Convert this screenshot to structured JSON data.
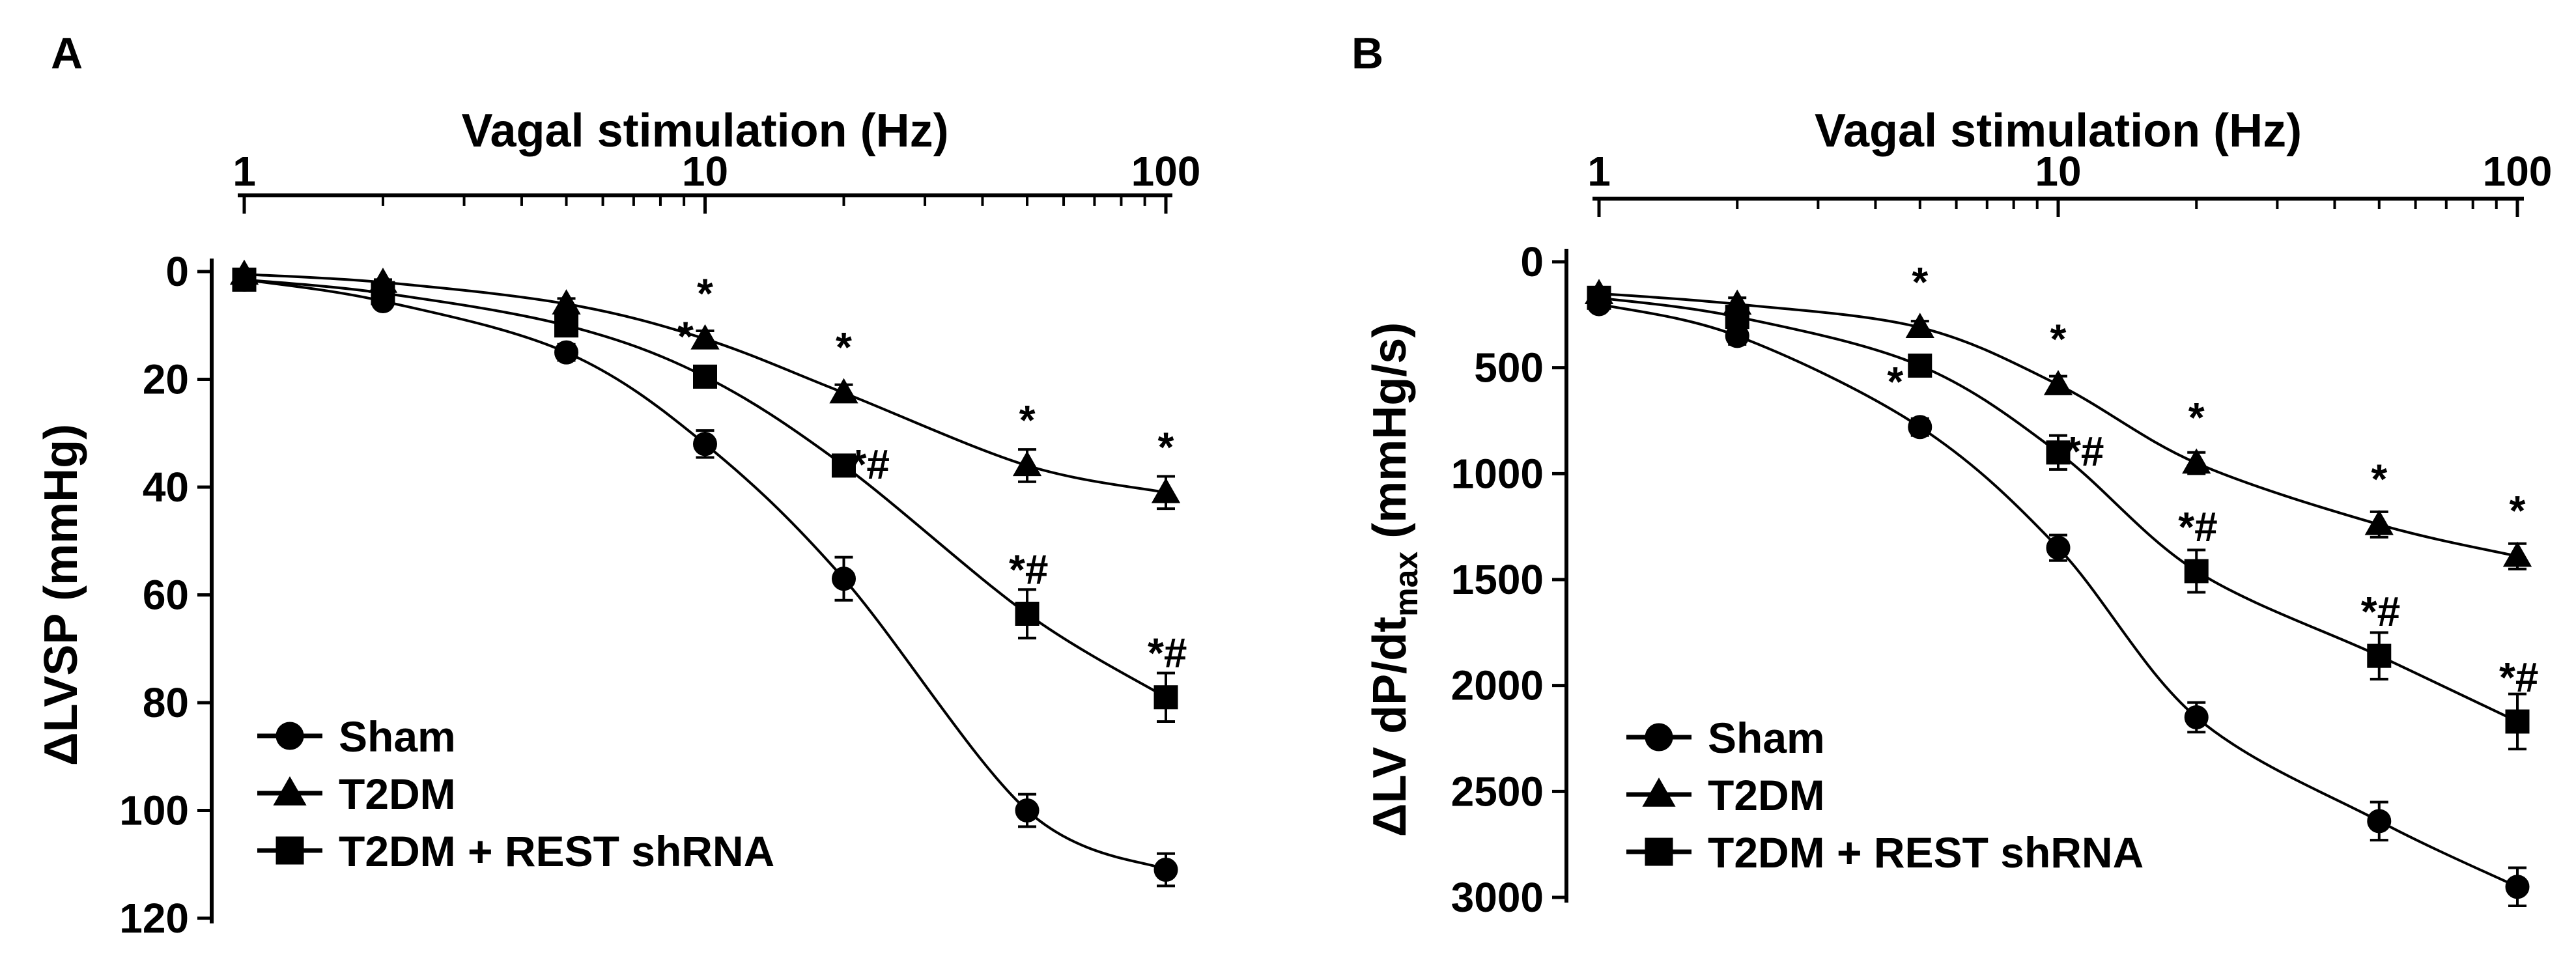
{
  "chart_data": [
    {
      "type": "line",
      "panel_label": "A",
      "title": "",
      "xlabel": "Vagal stimulation (Hz)",
      "ylabel": "ΔLVSP (mmHg)",
      "xscale": "log",
      "xlim": [
        1,
        100
      ],
      "ylim": [
        0,
        120
      ],
      "y_inverted": true,
      "x_tick_labels": [
        "1",
        "10",
        "100"
      ],
      "x_tick_values": [
        1,
        10,
        100
      ],
      "y_tick_values": [
        0,
        20,
        40,
        60,
        80,
        100,
        120
      ],
      "y_tick_labels": [
        "0",
        "20",
        "40",
        "60",
        "80",
        "100",
        "120"
      ],
      "x": [
        1,
        2,
        5,
        10,
        20,
        50,
        100
      ],
      "legend_position": "bottom-left",
      "series": [
        {
          "name": "Sham",
          "marker": "circle",
          "values": [
            1.5,
            5.5,
            15,
            32,
            57,
            100,
            111
          ],
          "errors": [
            1,
            1,
            1.5,
            2.5,
            4,
            3,
            3
          ],
          "annotations": [
            "",
            "",
            "",
            "",
            "",
            "",
            ""
          ]
        },
        {
          "name": "T2DM",
          "marker": "triangle",
          "values": [
            0.5,
            2,
            6,
            12.5,
            22.5,
            36,
            41
          ],
          "errors": [
            0.5,
            0.5,
            1,
            1.5,
            1.5,
            3,
            3
          ],
          "annotations": [
            "",
            "",
            "",
            "*",
            "*",
            "*",
            "*"
          ]
        },
        {
          "name": "T2DM + REST shRNA",
          "marker": "square",
          "values": [
            1.5,
            4,
            10,
            19.5,
            36,
            63.5,
            79
          ],
          "errors": [
            1,
            1,
            1,
            1.5,
            1.5,
            4.5,
            4.5
          ],
          "annotations": [
            "",
            "",
            "",
            "*",
            "*#",
            "*#",
            "*#"
          ]
        }
      ]
    },
    {
      "type": "line",
      "panel_label": "B",
      "title": "",
      "xlabel": "Vagal stimulation (Hz)",
      "ylabel": "ΔLV dP/dt",
      "ylabel_subscript": "max",
      "ylabel_units": " (mmHg/s)",
      "xscale": "log",
      "xlim": [
        1,
        100
      ],
      "ylim": [
        0,
        3000
      ],
      "y_inverted": true,
      "x_tick_labels": [
        "1",
        "10",
        "100"
      ],
      "x_tick_values": [
        1,
        10,
        100
      ],
      "y_tick_values": [
        0,
        500,
        1000,
        1500,
        2000,
        2500,
        3000
      ],
      "y_tick_labels": [
        "0",
        "500",
        "1000",
        "1500",
        "2000",
        "2500",
        "3000"
      ],
      "x": [
        1,
        2,
        5,
        10,
        20,
        50,
        100
      ],
      "legend_position": "bottom-left",
      "series": [
        {
          "name": "Sham",
          "marker": "circle",
          "values": [
            200,
            350,
            780,
            1350,
            2150,
            2640,
            2950
          ],
          "errors": [
            30,
            40,
            40,
            60,
            70,
            90,
            90
          ],
          "annotations": [
            "",
            "",
            "*",
            "",
            "",
            "",
            ""
          ]
        },
        {
          "name": "T2DM",
          "marker": "triangle",
          "values": [
            150,
            200,
            310,
            580,
            950,
            1240,
            1390
          ],
          "errors": [
            20,
            30,
            30,
            40,
            50,
            60,
            60
          ],
          "annotations": [
            "",
            "",
            "*",
            "*",
            "*",
            "*",
            "*"
          ]
        },
        {
          "name": "T2DM + REST shRNA",
          "marker": "square",
          "values": [
            170,
            260,
            490,
            900,
            1460,
            1860,
            2170
          ],
          "errors": [
            30,
            30,
            40,
            80,
            100,
            110,
            130
          ],
          "annotations": [
            "",
            "",
            "",
            "*#",
            "*#",
            "*#",
            "*#"
          ]
        }
      ]
    }
  ]
}
